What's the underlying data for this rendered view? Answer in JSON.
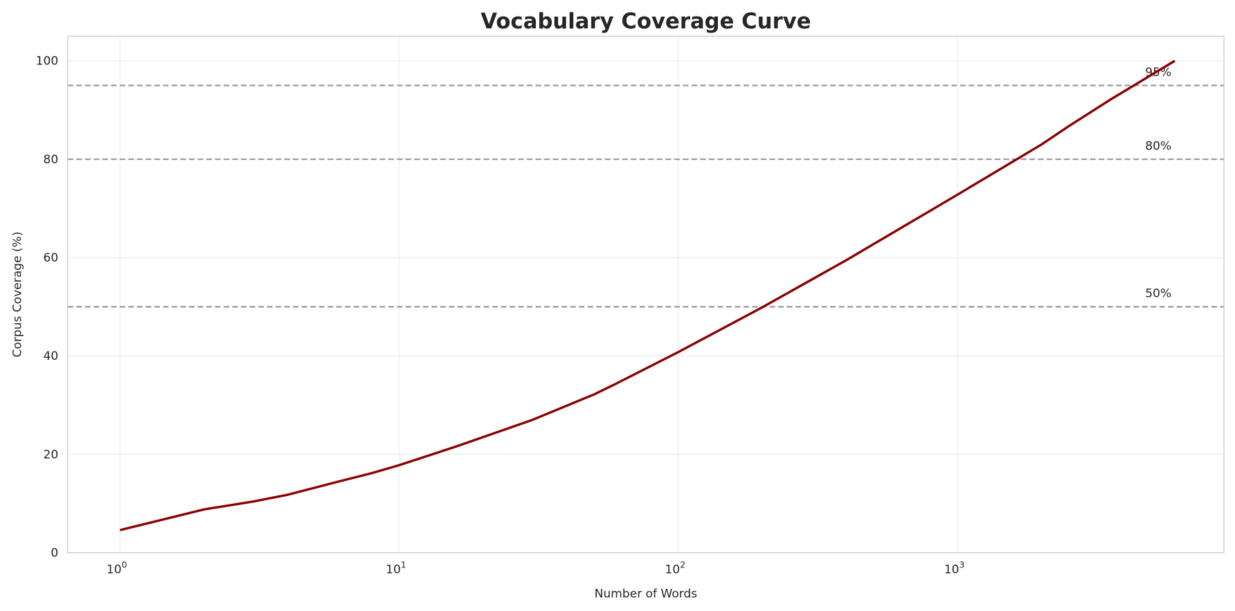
{
  "chart_data": {
    "type": "line",
    "title": "Vocabulary Coverage Curve",
    "xlabel": "Number of Words",
    "ylabel": "Corpus Coverage (%)",
    "xscale": "log",
    "xlim": [
      0.65,
      9000
    ],
    "ylim": [
      0,
      105
    ],
    "grid": true,
    "x_ticks": [
      {
        "value": 1,
        "base": "10",
        "exp": "0"
      },
      {
        "value": 10,
        "base": "10",
        "exp": "1"
      },
      {
        "value": 100,
        "base": "10",
        "exp": "2"
      },
      {
        "value": 1000,
        "base": "10",
        "exp": "3"
      }
    ],
    "y_ticks": [
      0,
      20,
      40,
      60,
      80,
      100
    ],
    "line_color": "#8b0000",
    "reference_color": "#999999",
    "x": [
      1,
      2,
      3,
      4,
      6,
      8,
      10,
      16,
      30,
      50,
      60,
      100,
      200,
      400,
      1000,
      2000,
      2500,
      3500,
      6000
    ],
    "y": [
      4.6,
      8.8,
      10.4,
      11.8,
      14.4,
      16.2,
      17.8,
      21.6,
      27.0,
      32.2,
      34.4,
      40.8,
      49.9,
      59.5,
      72.8,
      83.0,
      86.7,
      92.0,
      100
    ],
    "reference_lines": [
      {
        "value": 95,
        "label": "95%"
      },
      {
        "value": 80,
        "label": "80%"
      },
      {
        "value": 50,
        "label": "50%"
      }
    ]
  }
}
